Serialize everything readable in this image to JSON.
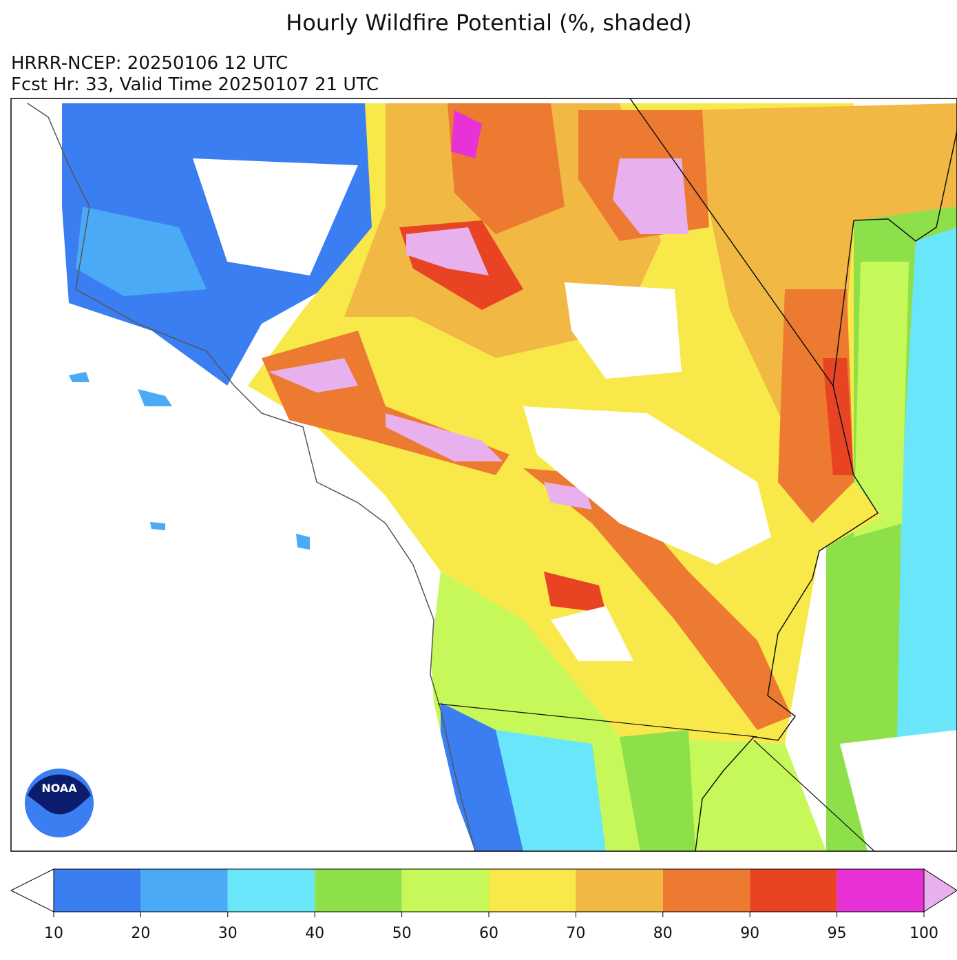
{
  "header": {
    "title": "Hourly Wildfire Potential (%, shaded)",
    "model": "HRRR-NCEP: 20250106 12 UTC",
    "forecast": "Fcst Hr: 33, Valid Time 20250107 21 UTC"
  },
  "logo": "NOAA",
  "colorbar": {
    "levels": [
      10,
      20,
      30,
      40,
      50,
      60,
      70,
      80,
      90,
      95,
      100
    ],
    "colors": [
      "#3a7ef2",
      "#4aaaf5",
      "#6ae6fa",
      "#8ee04a",
      "#c6f85a",
      "#f8e84a",
      "#f2b844",
      "#ec7a30",
      "#e84424",
      "#e832d8"
    ],
    "under_color": "#ffffff",
    "over_color": "#e8b0ec"
  }
}
